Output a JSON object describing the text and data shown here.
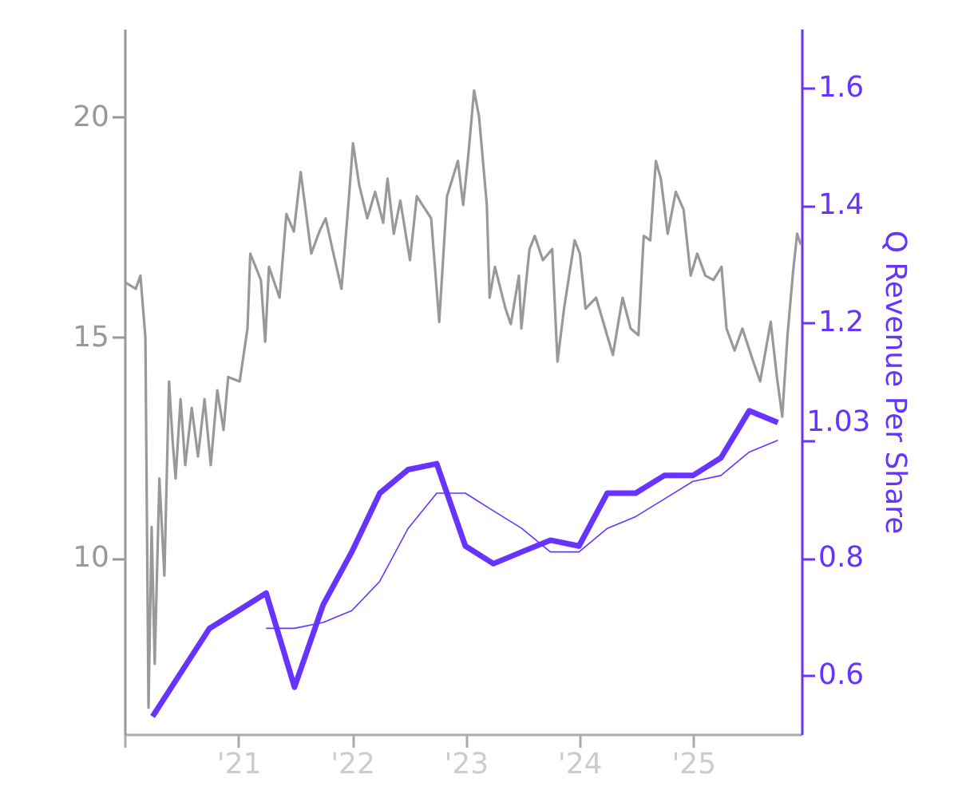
{
  "chart_data": {
    "type": "line",
    "y2label": "Q Revenue Per Share",
    "xlim": [
      "2020-01-01",
      "2025-12-15"
    ],
    "xticks": [
      {
        "value": "2020-01-01",
        "label": null
      },
      {
        "value": "2021-01-01",
        "label": "'21"
      },
      {
        "value": "2022-01-01",
        "label": "'22"
      },
      {
        "value": "2023-01-01",
        "label": "'23"
      },
      {
        "value": "2024-01-01",
        "label": "'24"
      },
      {
        "value": "2025-01-01",
        "label": "'25"
      }
    ],
    "ylim": [
      6,
      22
    ],
    "yticks": [
      10,
      15,
      20
    ],
    "y2lim": [
      0.5,
      1.7
    ],
    "y2ticks": [
      0.6,
      0.8,
      {
        "value": 1.0,
        "label": null
      },
      1.2,
      1.4,
      1.6
    ],
    "grid": false,
    "series": [
      {
        "color": "#999999",
        "x": [
          "2020-01-02",
          "2020-02-06",
          "2020-02-21",
          "2020-03-08",
          "2020-03-18",
          "2020-03-28",
          "2020-04-07",
          "2020-04-22",
          "2020-05-08",
          "2020-05-23",
          "2020-06-03",
          "2020-06-13",
          "2020-06-29",
          "2020-07-14",
          "2020-08-04",
          "2020-08-24",
          "2020-09-14",
          "2020-10-04",
          "2020-10-25",
          "2020-11-14",
          "2020-11-29",
          "2021-01-05",
          "2021-01-30",
          "2021-02-08",
          "2021-03-14",
          "2021-03-28",
          "2021-04-09",
          "2021-05-13",
          "2021-06-04",
          "2021-06-28",
          "2021-07-20",
          "2021-08-23",
          "2021-09-18",
          "2021-10-08",
          "2021-10-30",
          "2021-11-28",
          "2021-12-20",
          "2022-01-04",
          "2022-01-24",
          "2022-02-19",
          "2022-03-16",
          "2022-04-11",
          "2022-04-25",
          "2022-05-15",
          "2022-06-05",
          "2022-07-06",
          "2022-07-28",
          "2022-09-12",
          "2022-10-08",
          "2022-11-02",
          "2022-12-07",
          "2022-12-24",
          "2023-01-09",
          "2023-01-28",
          "2023-02-13",
          "2023-03-10",
          "2023-03-19",
          "2023-04-05",
          "2023-05-09",
          "2023-05-26",
          "2023-06-21",
          "2023-06-29",
          "2023-07-25",
          "2023-08-11",
          "2023-09-06",
          "2023-10-06",
          "2023-10-23",
          "2023-11-13",
          "2023-12-17",
          "2024-01-03",
          "2024-01-21",
          "2024-02-24",
          "2024-03-20",
          "2024-04-18",
          "2024-05-19",
          "2024-06-14",
          "2024-07-09",
          "2024-07-26",
          "2024-08-16",
          "2024-09-03",
          "2024-09-19",
          "2024-10-11",
          "2024-11-06",
          "2024-12-01",
          "2024-12-24",
          "2025-01-14",
          "2025-02-09",
          "2025-03-07",
          "2025-04-02",
          "2025-04-18",
          "2025-05-14",
          "2025-06-08",
          "2025-07-13",
          "2025-08-04",
          "2025-09-07",
          "2025-09-27",
          "2025-10-14",
          "2025-10-31",
          "2025-11-18",
          "2025-12-01",
          "2025-12-13"
        ],
        "values": [
          16.25,
          16.1,
          16.4,
          15.0,
          6.6,
          10.7,
          7.6,
          11.8,
          9.6,
          14.0,
          12.7,
          11.8,
          13.6,
          12.1,
          13.4,
          12.3,
          13.6,
          12.1,
          13.8,
          12.9,
          14.1,
          14.0,
          15.2,
          16.9,
          16.3,
          14.9,
          16.6,
          15.9,
          17.8,
          17.4,
          18.75,
          16.9,
          17.4,
          17.7,
          17.0,
          16.1,
          18.0,
          19.4,
          18.45,
          17.7,
          18.3,
          17.6,
          18.6,
          17.35,
          18.1,
          16.75,
          18.2,
          17.7,
          15.35,
          18.2,
          19.0,
          18.0,
          19.1,
          20.6,
          20.0,
          18.0,
          15.9,
          16.6,
          15.65,
          15.3,
          16.4,
          15.2,
          17.0,
          17.3,
          16.75,
          17.0,
          14.45,
          15.65,
          17.2,
          16.9,
          15.65,
          15.9,
          15.3,
          14.6,
          15.9,
          15.2,
          15.05,
          17.3,
          17.2,
          19.0,
          18.6,
          17.35,
          18.3,
          17.9,
          16.4,
          16.9,
          16.4,
          16.3,
          16.6,
          15.2,
          14.7,
          15.2,
          14.45,
          14.0,
          15.35,
          14.1,
          13.2,
          15.05,
          16.5,
          17.35,
          17.1
        ]
      },
      {
        "color": "#6633ff",
        "axis": "y2",
        "x": [
          "2020-03-31",
          "2020-09-30",
          "2020-12-31",
          "2021-03-31",
          "2021-06-30",
          "2021-09-30",
          "2021-12-31",
          "2022-03-31",
          "2022-06-30",
          "2022-09-30",
          "2022-12-31",
          "2023-03-31",
          "2023-06-30",
          "2023-09-30",
          "2023-12-31",
          "2024-03-31",
          "2024-06-30",
          "2024-09-30",
          "2024-12-31",
          "2025-03-31",
          "2025-06-30",
          "2025-09-30"
        ],
        "values": [
          0.53,
          0.68,
          0.71,
          0.74,
          0.58,
          0.72,
          0.81,
          0.91,
          0.95,
          0.96,
          0.82,
          0.79,
          0.81,
          0.83,
          0.82,
          0.91,
          0.91,
          0.94,
          0.94,
          0.97,
          1.05,
          1.03
        ],
        "value_labels": [
          null,
          null,
          null,
          null,
          null,
          null,
          null,
          null,
          null,
          null,
          null,
          null,
          null,
          null,
          null,
          null,
          null,
          null,
          null,
          null,
          null,
          "1.03"
        ]
      },
      {
        "color": "#6633ff",
        "axis": "y2",
        "x": [
          "2021-03-31",
          "2021-06-30",
          "2021-09-30",
          "2021-12-31",
          "2022-03-31",
          "2022-06-30",
          "2022-09-30",
          "2022-12-31",
          "2023-03-31",
          "2023-06-30",
          "2023-09-30",
          "2023-12-31",
          "2024-03-31",
          "2024-06-30",
          "2024-09-30",
          "2024-12-31",
          "2025-03-31",
          "2025-06-30",
          "2025-09-30"
        ],
        "values": [
          0.68,
          0.68,
          0.69,
          0.71,
          0.76,
          0.85,
          0.91,
          0.91,
          0.88,
          0.85,
          0.81,
          0.81,
          0.85,
          0.87,
          0.9,
          0.93,
          0.94,
          0.98,
          1.0
        ]
      }
    ]
  }
}
